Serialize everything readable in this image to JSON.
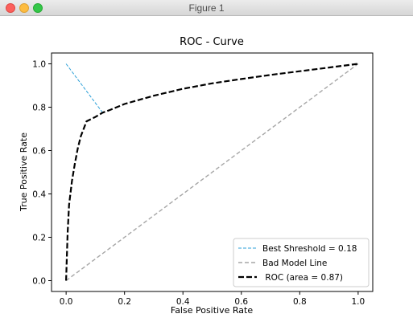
{
  "window": {
    "title": "Figure 1"
  },
  "chart_data": {
    "type": "line",
    "title": "ROC - Curve",
    "xlabel": "False Positive Rate",
    "ylabel": "True Positive Rate",
    "xlim": [
      -0.05,
      1.05
    ],
    "ylim": [
      -0.05,
      1.05
    ],
    "xticks": [
      "0.0",
      "0.2",
      "0.4",
      "0.6",
      "0.8",
      "1.0"
    ],
    "yticks": [
      "0.0",
      "0.2",
      "0.4",
      "0.6",
      "0.8",
      "1.0"
    ],
    "grid": false,
    "legend_position": "lower-right",
    "series": [
      {
        "name": "Best Shreshold = 0.18",
        "style": "dashed-thin",
        "color": "#2ca0d8",
        "x": [
          0.0,
          0.125
        ],
        "y": [
          1.0,
          0.775
        ]
      },
      {
        "name": "Bad Model Line",
        "style": "dashed",
        "color": "#a6a6a6",
        "x": [
          0.0,
          1.0
        ],
        "y": [
          0.0,
          1.0
        ]
      },
      {
        "name": " ROC (area = 0.87)",
        "style": "dashed-thick",
        "color": "#000000",
        "x": [
          0.0,
          0.005,
          0.01,
          0.02,
          0.03,
          0.04,
          0.05,
          0.07,
          0.1,
          0.125,
          0.15,
          0.2,
          0.3,
          0.4,
          0.5,
          0.6,
          0.7,
          0.8,
          0.9,
          1.0
        ],
        "y": [
          0.0,
          0.22,
          0.35,
          0.46,
          0.54,
          0.61,
          0.665,
          0.735,
          0.755,
          0.775,
          0.787,
          0.815,
          0.853,
          0.885,
          0.91,
          0.93,
          0.949,
          0.966,
          0.983,
          1.0
        ]
      }
    ]
  }
}
